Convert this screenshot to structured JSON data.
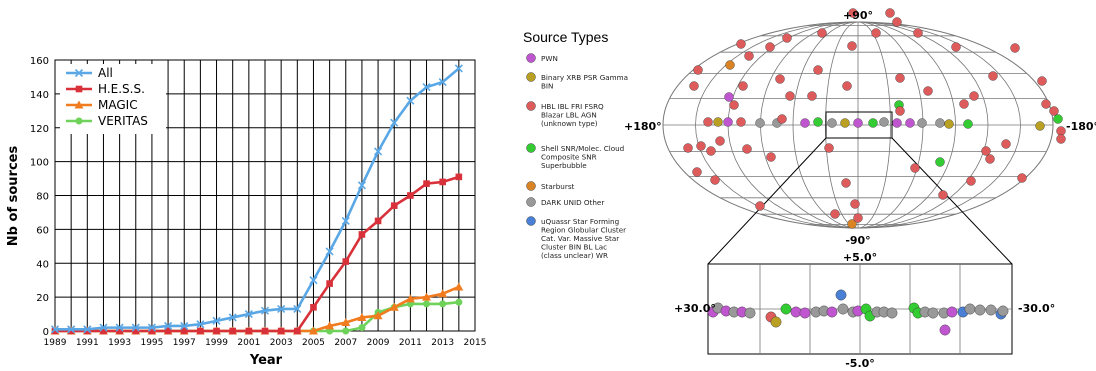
{
  "chart_data": {
    "type": "line",
    "xlabel": "Year",
    "ylabel": "Nb of sources",
    "xlim": [
      1989,
      2015
    ],
    "ylim": [
      0,
      160
    ],
    "x_ticks": [
      "1989",
      "1991",
      "1993",
      "1995",
      "1997",
      "1999",
      "2001",
      "2003",
      "2005",
      "2007",
      "2009",
      "2011",
      "2013",
      "2015"
    ],
    "y_ticks": [
      "0",
      "20",
      "40",
      "60",
      "80",
      "100",
      "120",
      "140",
      "160"
    ],
    "grid": true,
    "legend_position": "top-left",
    "x": [
      1989,
      1990,
      1991,
      1992,
      1993,
      1994,
      1995,
      1996,
      1997,
      1998,
      1999,
      2000,
      2001,
      2002,
      2003,
      2004,
      2005,
      2006,
      2007,
      2008,
      2009,
      2010,
      2011,
      2012,
      2013,
      2014
    ],
    "series": [
      {
        "name": "All",
        "color": "#5aa7e6",
        "marker": "x",
        "values": [
          1,
          1,
          1,
          2,
          2,
          2,
          2,
          3,
          3,
          4,
          6,
          8,
          10,
          12,
          13,
          13,
          30,
          47,
          65,
          86,
          106,
          123,
          136,
          144,
          147,
          155
        ]
      },
      {
        "name": "H.E.S.S.",
        "color": "#d8313a",
        "marker": "square",
        "values": [
          0,
          0,
          0,
          0,
          0,
          0,
          0,
          0,
          0,
          0,
          0,
          0,
          0,
          0,
          0,
          0,
          14,
          28,
          41,
          57,
          65,
          74,
          80,
          87,
          88,
          91
        ]
      },
      {
        "name": "MAGIC",
        "color": "#f07c1f",
        "marker": "triangle",
        "values": [
          0,
          0,
          0,
          0,
          0,
          0,
          0,
          0,
          0,
          0,
          0,
          0,
          0,
          0,
          0,
          0,
          0,
          3,
          5,
          8,
          9,
          14,
          19,
          20,
          22,
          26
        ]
      },
      {
        "name": "VERITAS",
        "color": "#6fd25a",
        "marker": "circle",
        "values": [
          0,
          0,
          0,
          0,
          0,
          0,
          0,
          0,
          0,
          0,
          0,
          0,
          0,
          0,
          0,
          0,
          0,
          0,
          0,
          2,
          11,
          14,
          16,
          16,
          16,
          17
        ]
      }
    ]
  },
  "sky_map": {
    "legend_title": "Source Types",
    "legend": [
      {
        "label": "PWN",
        "color": "#c055d0"
      },
      {
        "label": "Binary XRB PSR Gamma BIN",
        "color": "#b9a023"
      },
      {
        "label": "HBL IBL FRI FSRQ Blazar LBL AGN (unknown type)",
        "color": "#de5b5b"
      },
      {
        "label": "Shell SNR/Molec. Cloud Composite SNR Superbubble",
        "color": "#33cc33"
      },
      {
        "label": "Starburst",
        "color": "#d98324"
      },
      {
        "label": "DARK UNID Other",
        "color": "#999999"
      },
      {
        "label": "uQuassr Star Forming Region Globular Cluster Cat. Var. Massive Star Cluster BIN BL Lac (class unclear) WR",
        "color": "#4a7fd6"
      }
    ],
    "labels": {
      "top": "+90°",
      "bottom": "-90°",
      "left": "+180°",
      "right": "-180°",
      "inset_top": "+5.0°",
      "inset_bottom": "-5.0°",
      "inset_left": "+30.0°",
      "inset_right": "-30.0°"
    }
  }
}
